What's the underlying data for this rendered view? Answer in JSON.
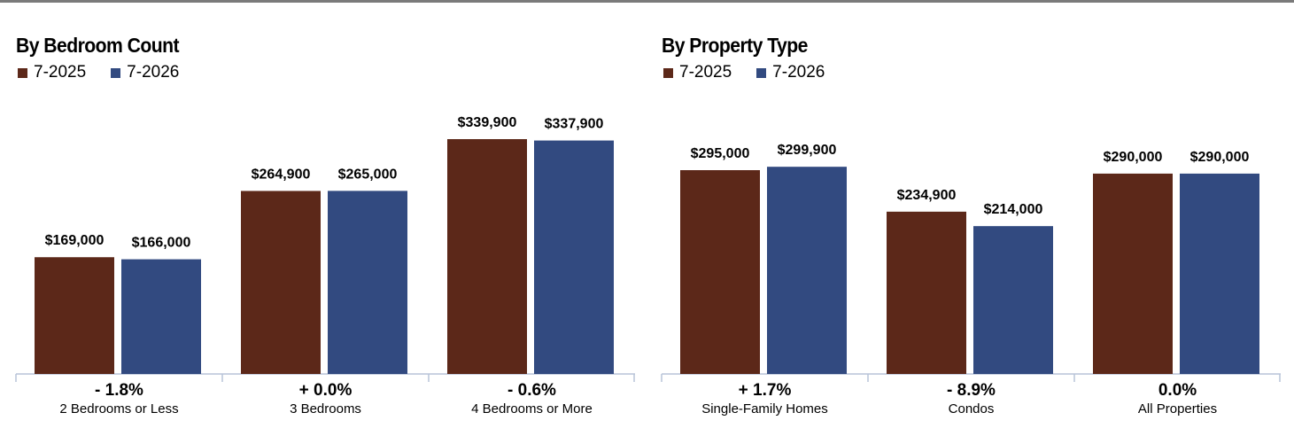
{
  "colors": {
    "series_2025": "#5c2819",
    "series_2026": "#324a80",
    "axis": "#b8c4d8",
    "top_rule": "#7a7a7a"
  },
  "chart_data": [
    {
      "type": "bar",
      "title": "By Bedroom Count",
      "categories": [
        "2 Bedrooms or Less",
        "3 Bedrooms",
        "4 Bedrooms or More"
      ],
      "changes": [
        "- 1.8%",
        "+ 0.0%",
        "- 0.6%"
      ],
      "series": [
        {
          "name": "7-2025",
          "values": [
            169000,
            264900,
            339900
          ],
          "labels": [
            "$169,000",
            "$264,900",
            "$339,900"
          ]
        },
        {
          "name": "7-2026",
          "values": [
            166000,
            265000,
            337900
          ],
          "labels": [
            "$166,000",
            "$265,000",
            "$337,900"
          ]
        }
      ],
      "ylim": [
        0,
        350000
      ],
      "legend_position": "top-left",
      "grid": false
    },
    {
      "type": "bar",
      "title": "By Property Type",
      "categories": [
        "Single-Family Homes",
        "Condos",
        "All Properties"
      ],
      "changes": [
        "+ 1.7%",
        "- 8.9%",
        "0.0%"
      ],
      "series": [
        {
          "name": "7-2025",
          "values": [
            295000,
            234900,
            290000
          ],
          "labels": [
            "$295,000",
            "$234,900",
            "$290,000"
          ]
        },
        {
          "name": "7-2026",
          "values": [
            299900,
            214000,
            290000
          ],
          "labels": [
            "$299,900",
            "$214,000",
            "$290,000"
          ]
        }
      ],
      "ylim": [
        0,
        350000
      ],
      "legend_position": "top-left",
      "grid": false
    }
  ]
}
